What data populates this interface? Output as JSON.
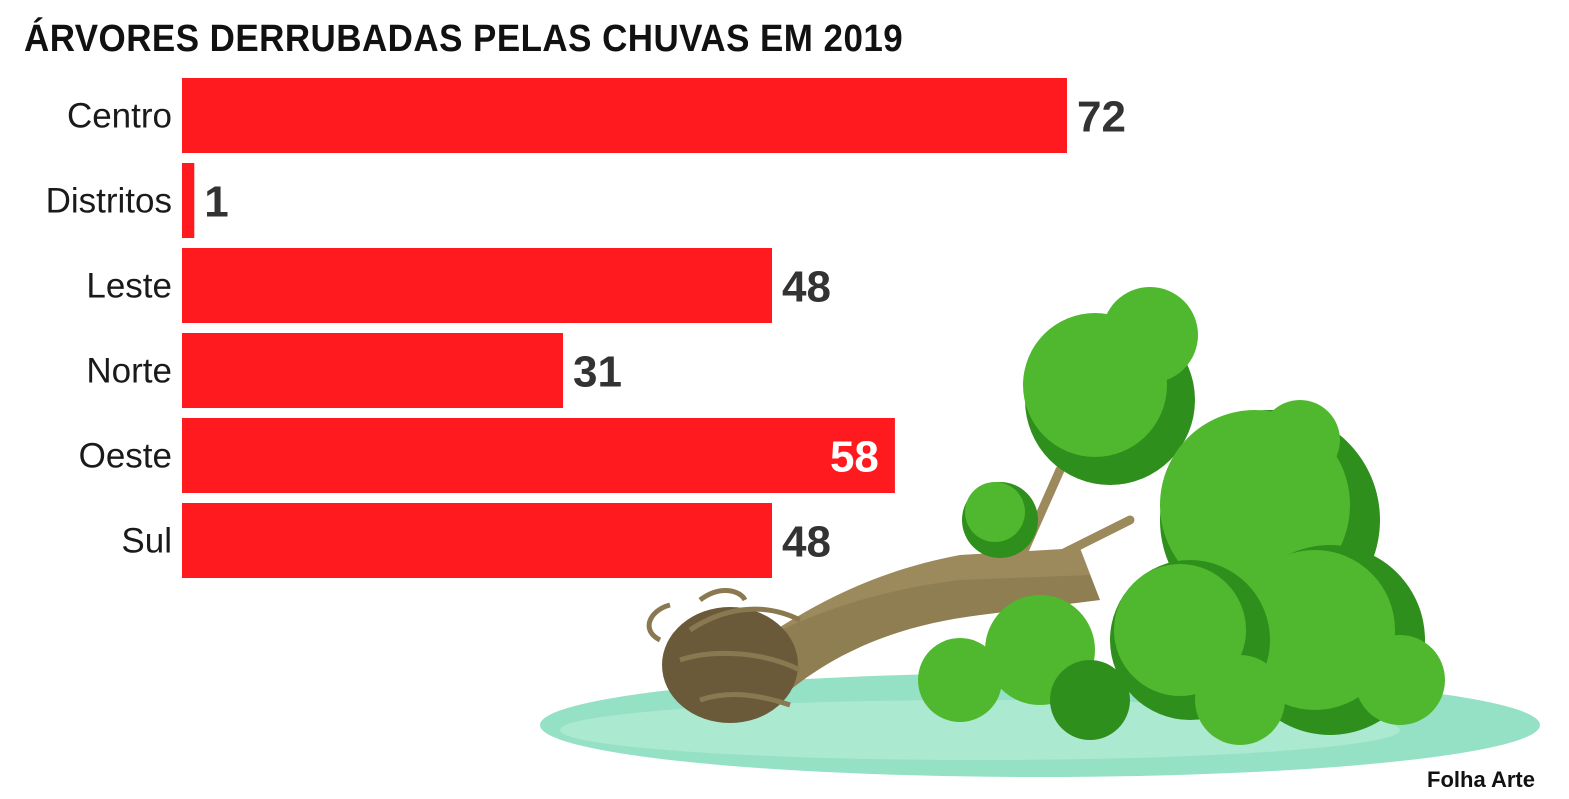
{
  "chart_data": {
    "type": "bar",
    "orientation": "horizontal",
    "title": "ÁRVORES DERRUBADAS PELAS CHUVAS EM 2019",
    "categories": [
      "Centro",
      "Distritos",
      "Leste",
      "Norte",
      "Oeste",
      "Sul"
    ],
    "values": [
      72,
      1,
      48,
      31,
      58,
      48
    ],
    "value_labels": [
      "72",
      "1",
      "48",
      "31",
      "58",
      "48"
    ],
    "value_label_inside": [
      false,
      false,
      false,
      false,
      true,
      false
    ],
    "xlim": [
      0,
      72
    ],
    "grid": false,
    "bar_color": "#ff1a1f",
    "label_color": "#333333",
    "inside_label_color": "#ffffff"
  },
  "credit": "Folha Arte",
  "illustration": {
    "icon": "fallen-tree-icon",
    "foliage_color": "#4fb82e",
    "foliage_dark_color": "#2f8f1c",
    "trunk_color": "#9c8a5c",
    "root_color": "#6b5a3a",
    "ground_color": "#7ad9b8"
  }
}
